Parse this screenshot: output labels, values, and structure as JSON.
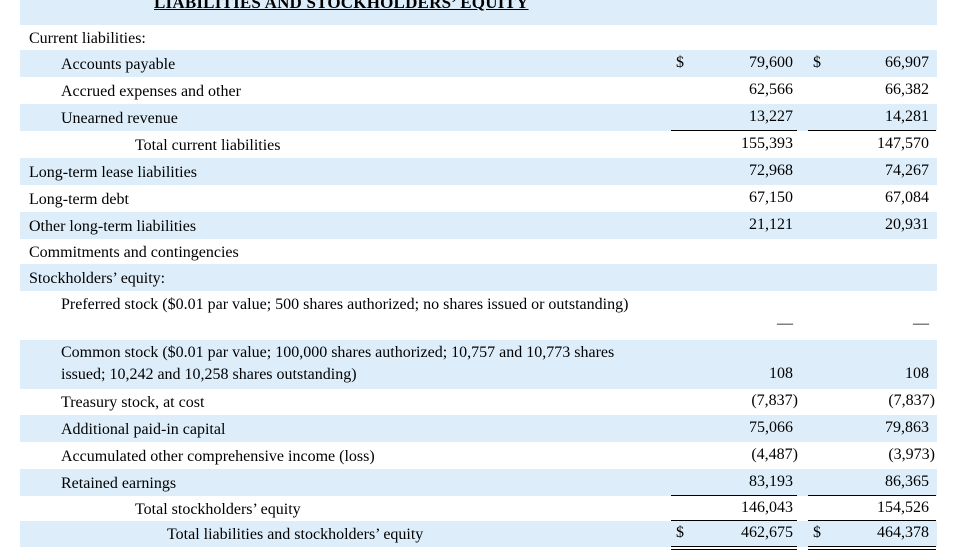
{
  "heading": "LIABILITIES AND STOCKHOLDERS’ EQUITY",
  "rows": [
    {
      "label": "Current liabilities:",
      "cur1": "",
      "v1": "",
      "cur2": "",
      "v2": ""
    },
    {
      "label": "Accounts payable",
      "cur1": "$",
      "v1": "79,600",
      "cur2": "$",
      "v2": "66,907"
    },
    {
      "label": "Accrued expenses and other",
      "cur1": "",
      "v1": "62,566",
      "cur2": "",
      "v2": "66,382"
    },
    {
      "label": "Unearned revenue",
      "cur1": "",
      "v1": "13,227",
      "cur2": "",
      "v2": "14,281"
    },
    {
      "label": "Total current liabilities",
      "cur1": "",
      "v1": "155,393",
      "cur2": "",
      "v2": "147,570"
    },
    {
      "label": "Long-term lease liabilities",
      "cur1": "",
      "v1": "72,968",
      "cur2": "",
      "v2": "74,267"
    },
    {
      "label": "Long-term debt",
      "cur1": "",
      "v1": "67,150",
      "cur2": "",
      "v2": "67,084"
    },
    {
      "label": "Other long-term liabilities",
      "cur1": "",
      "v1": "21,121",
      "cur2": "",
      "v2": "20,931"
    },
    {
      "label": "Commitments and contingencies",
      "cur1": "",
      "v1": "",
      "cur2": "",
      "v2": ""
    },
    {
      "label": "Stockholders’ equity:",
      "cur1": "",
      "v1": "",
      "cur2": "",
      "v2": ""
    },
    {
      "label": "Preferred stock ($0.01 par value; 500 shares authorized; no shares issued or outstanding)",
      "cur1": "",
      "v1": "—",
      "cur2": "",
      "v2": "—"
    },
    {
      "label": "Common stock ($0.01 par value; 100,000 shares authorized; 10,757 and 10,773 shares issued; 10,242 and 10,258 shares outstanding)",
      "cur1": "",
      "v1": "108",
      "cur2": "",
      "v2": "108"
    },
    {
      "label": "Treasury stock, at cost",
      "cur1": "",
      "v1": "(7,837)",
      "cur2": "",
      "v2": "(7,837)"
    },
    {
      "label": "Additional paid-in capital",
      "cur1": "",
      "v1": "75,066",
      "cur2": "",
      "v2": "79,863"
    },
    {
      "label": "Accumulated other comprehensive income (loss)",
      "cur1": "",
      "v1": "(4,487)",
      "cur2": "",
      "v2": "(3,973)"
    },
    {
      "label": "Retained earnings",
      "cur1": "",
      "v1": "83,193",
      "cur2": "",
      "v2": "86,365"
    },
    {
      "label": "Total stockholders’ equity",
      "cur1": "",
      "v1": "146,043",
      "cur2": "",
      "v2": "154,526"
    },
    {
      "label": "Total liabilities and stockholders’ equity",
      "cur1": "$",
      "v1": "462,675",
      "cur2": "$",
      "v2": "464,378"
    }
  ]
}
